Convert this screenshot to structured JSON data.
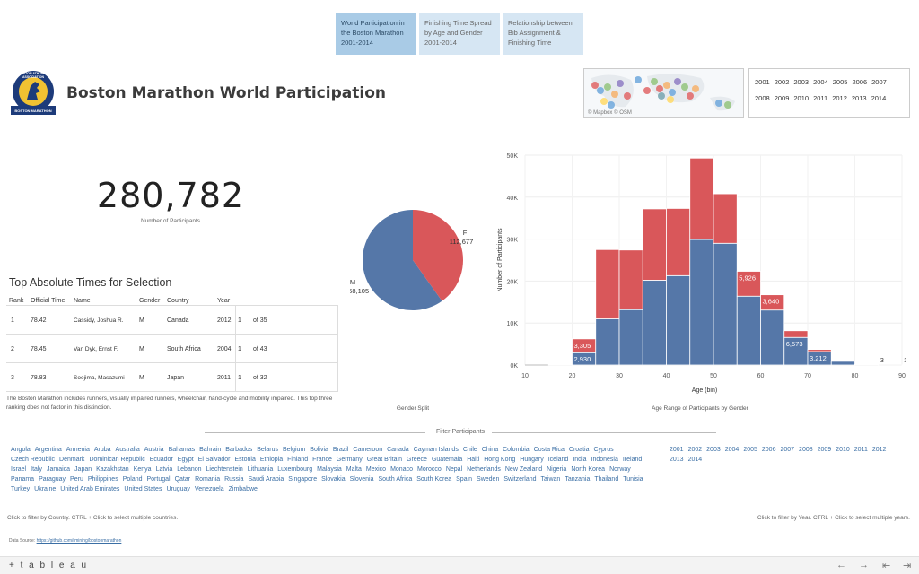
{
  "tabs": [
    {
      "label": "World Participation in the Boston Marathon 2001-2014"
    },
    {
      "label": "Finishing Time Spread by Age and Gender 2001-2014"
    },
    {
      "label": "Relationship between Bib Assignment & Finishing Time"
    }
  ],
  "header": {
    "title": "Boston Marathon World Participation"
  },
  "logo": {
    "text_top": "BOSTON ATHLETIC ASSOCIATION",
    "text_bottom": "BOSTON MARATHON"
  },
  "map": {
    "credit": "© Mapbox © OSM"
  },
  "year_filter": [
    "2001",
    "2002",
    "2003",
    "2004",
    "2005",
    "2006",
    "2007",
    "2008",
    "2009",
    "2010",
    "2011",
    "2012",
    "2013",
    "2014"
  ],
  "kpi": {
    "value": "280,782",
    "label": "Number of Participants"
  },
  "table": {
    "title": "Top Absolute Times for Selection",
    "headers": {
      "rank": "Rank",
      "time": "Official Time",
      "name": "Name",
      "gender": "Gender",
      "country": "Country",
      "year": "Year"
    },
    "rows": [
      {
        "rank": "1",
        "time": "78.42",
        "name": "Cassidy, Joshua R.",
        "gender": "M",
        "country": "Canada",
        "year": "2012",
        "place": "1",
        "of": "of 35"
      },
      {
        "rank": "2",
        "time": "78.45",
        "name": "Van Dyk, Ernst F.",
        "gender": "M",
        "country": "South Africa",
        "year": "2004",
        "place": "1",
        "of": "of 43"
      },
      {
        "rank": "3",
        "time": "78.83",
        "name": "Soejima, Masazumi",
        "gender": "M",
        "country": "Japan",
        "year": "2011",
        "place": "1",
        "of": "of 32"
      }
    ],
    "note": "The Boston Marathon includes runners, visually impaired runners, wheelchair, hand-cycle and mobility impaired. This top three ranking does not factor in this distinction."
  },
  "pie": {
    "caption": "Gender Split",
    "label_f": "F",
    "value_f": "112,677",
    "label_m": "M",
    "value_m": "168,105",
    "color_f": "#d9575a",
    "color_m": "#5577a8"
  },
  "chart_data": {
    "type": "bar",
    "stacked": true,
    "caption": "Age Range of Participants by Gender",
    "xlabel": "Age (bin)",
    "ylabel": "Number of Participants",
    "xlim": [
      10,
      90
    ],
    "ylim": [
      0,
      50000
    ],
    "x_ticks": [
      "10",
      "20",
      "30",
      "40",
      "50",
      "60",
      "70",
      "80",
      "90"
    ],
    "y_ticks": [
      "0K",
      "10K",
      "20K",
      "30K",
      "40K",
      "50K"
    ],
    "bin_width": 5,
    "bins": [
      15,
      20,
      25,
      30,
      35,
      40,
      45,
      50,
      55,
      60,
      65,
      70,
      75,
      80,
      85,
      90
    ],
    "series": [
      {
        "name": "M",
        "color": "#5577a8",
        "values": [
          100,
          2930,
          11000,
          13200,
          20200,
          21300,
          29900,
          29000,
          16400,
          13100,
          6573,
          3212,
          900,
          120,
          3,
          1
        ]
      },
      {
        "name": "F",
        "color": "#d9575a",
        "values": [
          0,
          3305,
          16500,
          14200,
          17000,
          16000,
          19400,
          11800,
          5926,
          3640,
          1600,
          500,
          80,
          10,
          0,
          0
        ]
      }
    ],
    "data_labels": [
      {
        "bin": 20,
        "series": "F",
        "text": "3,305"
      },
      {
        "bin": 20,
        "series": "M",
        "text": "2,930"
      },
      {
        "bin": 55,
        "series": "F",
        "text": "5,926"
      },
      {
        "bin": 60,
        "series": "F",
        "text": "3,640"
      },
      {
        "bin": 65,
        "series": "M",
        "text": "6,573"
      },
      {
        "bin": 70,
        "series": "M",
        "text": "3,212"
      },
      {
        "bin": 85,
        "series": "M",
        "text": "3"
      },
      {
        "bin": 90,
        "series": "M",
        "text": "1"
      }
    ]
  },
  "filter": {
    "title": "Filter Participants",
    "countries": [
      "Angola",
      "Argentina",
      "Armenia",
      "Aruba",
      "Australia",
      "Austria",
      "Bahamas",
      "Bahrain",
      "Barbados",
      "Belarus",
      "Belgium",
      "Bolivia",
      "Brazil",
      "Cameroon",
      "Canada",
      "Cayman Islands",
      "Chile",
      "China",
      "Colombia",
      "Costa Rica",
      "Croatia",
      "Cyprus",
      "Czech Republic",
      "Denmark",
      "Dominican Republic",
      "Ecuador",
      "Egypt",
      "El Salvador",
      "Estonia",
      "Ethiopia",
      "Finland",
      "France",
      "Germany",
      "Great Britain",
      "Greece",
      "Guatemala",
      "Haiti",
      "Hong Kong",
      "Hungary",
      "Iceland",
      "India",
      "Indonesia",
      "Ireland",
      "Israel",
      "Italy",
      "Jamaica",
      "Japan",
      "Kazakhstan",
      "Kenya",
      "Latvia",
      "Lebanon",
      "Liechtenstein",
      "Lithuania",
      "Luxembourg",
      "Malaysia",
      "Malta",
      "Mexico",
      "Monaco",
      "Morocco",
      "Nepal",
      "Netherlands",
      "New Zealand",
      "Nigeria",
      "North Korea",
      "Norway",
      "Panama",
      "Paraguay",
      "Peru",
      "Philippines",
      "Poland",
      "Portugal",
      "Qatar",
      "Romania",
      "Russia",
      "Saudi Arabia",
      "Singapore",
      "Slovakia",
      "Slovenia",
      "South Africa",
      "South Korea",
      "Spain",
      "Sweden",
      "Switzerland",
      "Taiwan",
      "Tanzania",
      "Thailand",
      "Tunisia",
      "Turkey",
      "Ukraine",
      "United Arab Emirates",
      "United States",
      "Uruguay",
      "Venezuela",
      "Zimbabwe"
    ],
    "years": [
      "2001",
      "2002",
      "2003",
      "2004",
      "2005",
      "2006",
      "2007",
      "2008",
      "2009",
      "2010",
      "2011",
      "2012",
      "2013",
      "2014"
    ],
    "country_hint": "Click to filter by Country. CTRL + Click to select multiple countries.",
    "year_hint": "Click to filter by Year. CTRL + Click to select multiple years.",
    "source_label": "Data Source:",
    "source_link": "https://github.com/rmining/bostonmarathon"
  },
  "footer": {
    "brand": "+ t a b l e a u",
    "back": "←",
    "forward": "→",
    "first": "⇤",
    "last": "⇥"
  }
}
